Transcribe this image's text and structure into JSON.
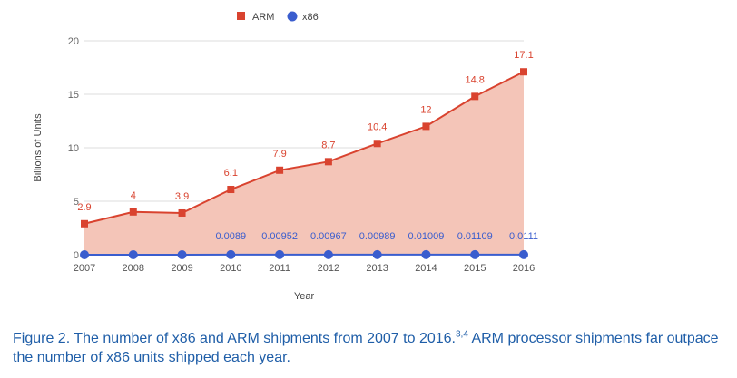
{
  "chart_data": {
    "type": "area",
    "title": "",
    "xlabel": "Year",
    "ylabel": "Billions of Units",
    "categories": [
      "2007",
      "2008",
      "2009",
      "2010",
      "2011",
      "2012",
      "2013",
      "2014",
      "2015",
      "2016"
    ],
    "ylim": [
      0,
      20
    ],
    "yticks": [
      "0",
      "5",
      "10",
      "15",
      "20"
    ],
    "grid": true,
    "legend": "top-center",
    "series": [
      {
        "name": "ARM",
        "marker": "square",
        "color": "#d9432f",
        "fill": "#f4c5b8",
        "values": [
          2.9,
          4,
          3.9,
          6.1,
          7.9,
          8.7,
          10.4,
          12,
          14.8,
          17.1
        ],
        "labels": [
          "2.9",
          "4",
          "3.9",
          "6.1",
          "7.9",
          "8.7",
          "10.4",
          "12",
          "14.8",
          "17.1"
        ]
      },
      {
        "name": "x86",
        "marker": "circle",
        "color": "#3a5dce",
        "values": [
          0,
          0,
          0,
          0.0089,
          0.00952,
          0.00967,
          0.00989,
          0.01009,
          0.01109,
          0.0111
        ],
        "labels": [
          "",
          "",
          "",
          "0.0089",
          "0.00952",
          "0.00967",
          "0.00989",
          "0.01009",
          "0.01109",
          "0.0111"
        ]
      }
    ]
  },
  "caption": {
    "text_before": "Figure 2. The number of x86 and ARM shipments from 2007 to 2016.",
    "superscript": "3,4",
    "text_after": " ARM processor shipments far outpace the number of x86 units shipped each year."
  }
}
